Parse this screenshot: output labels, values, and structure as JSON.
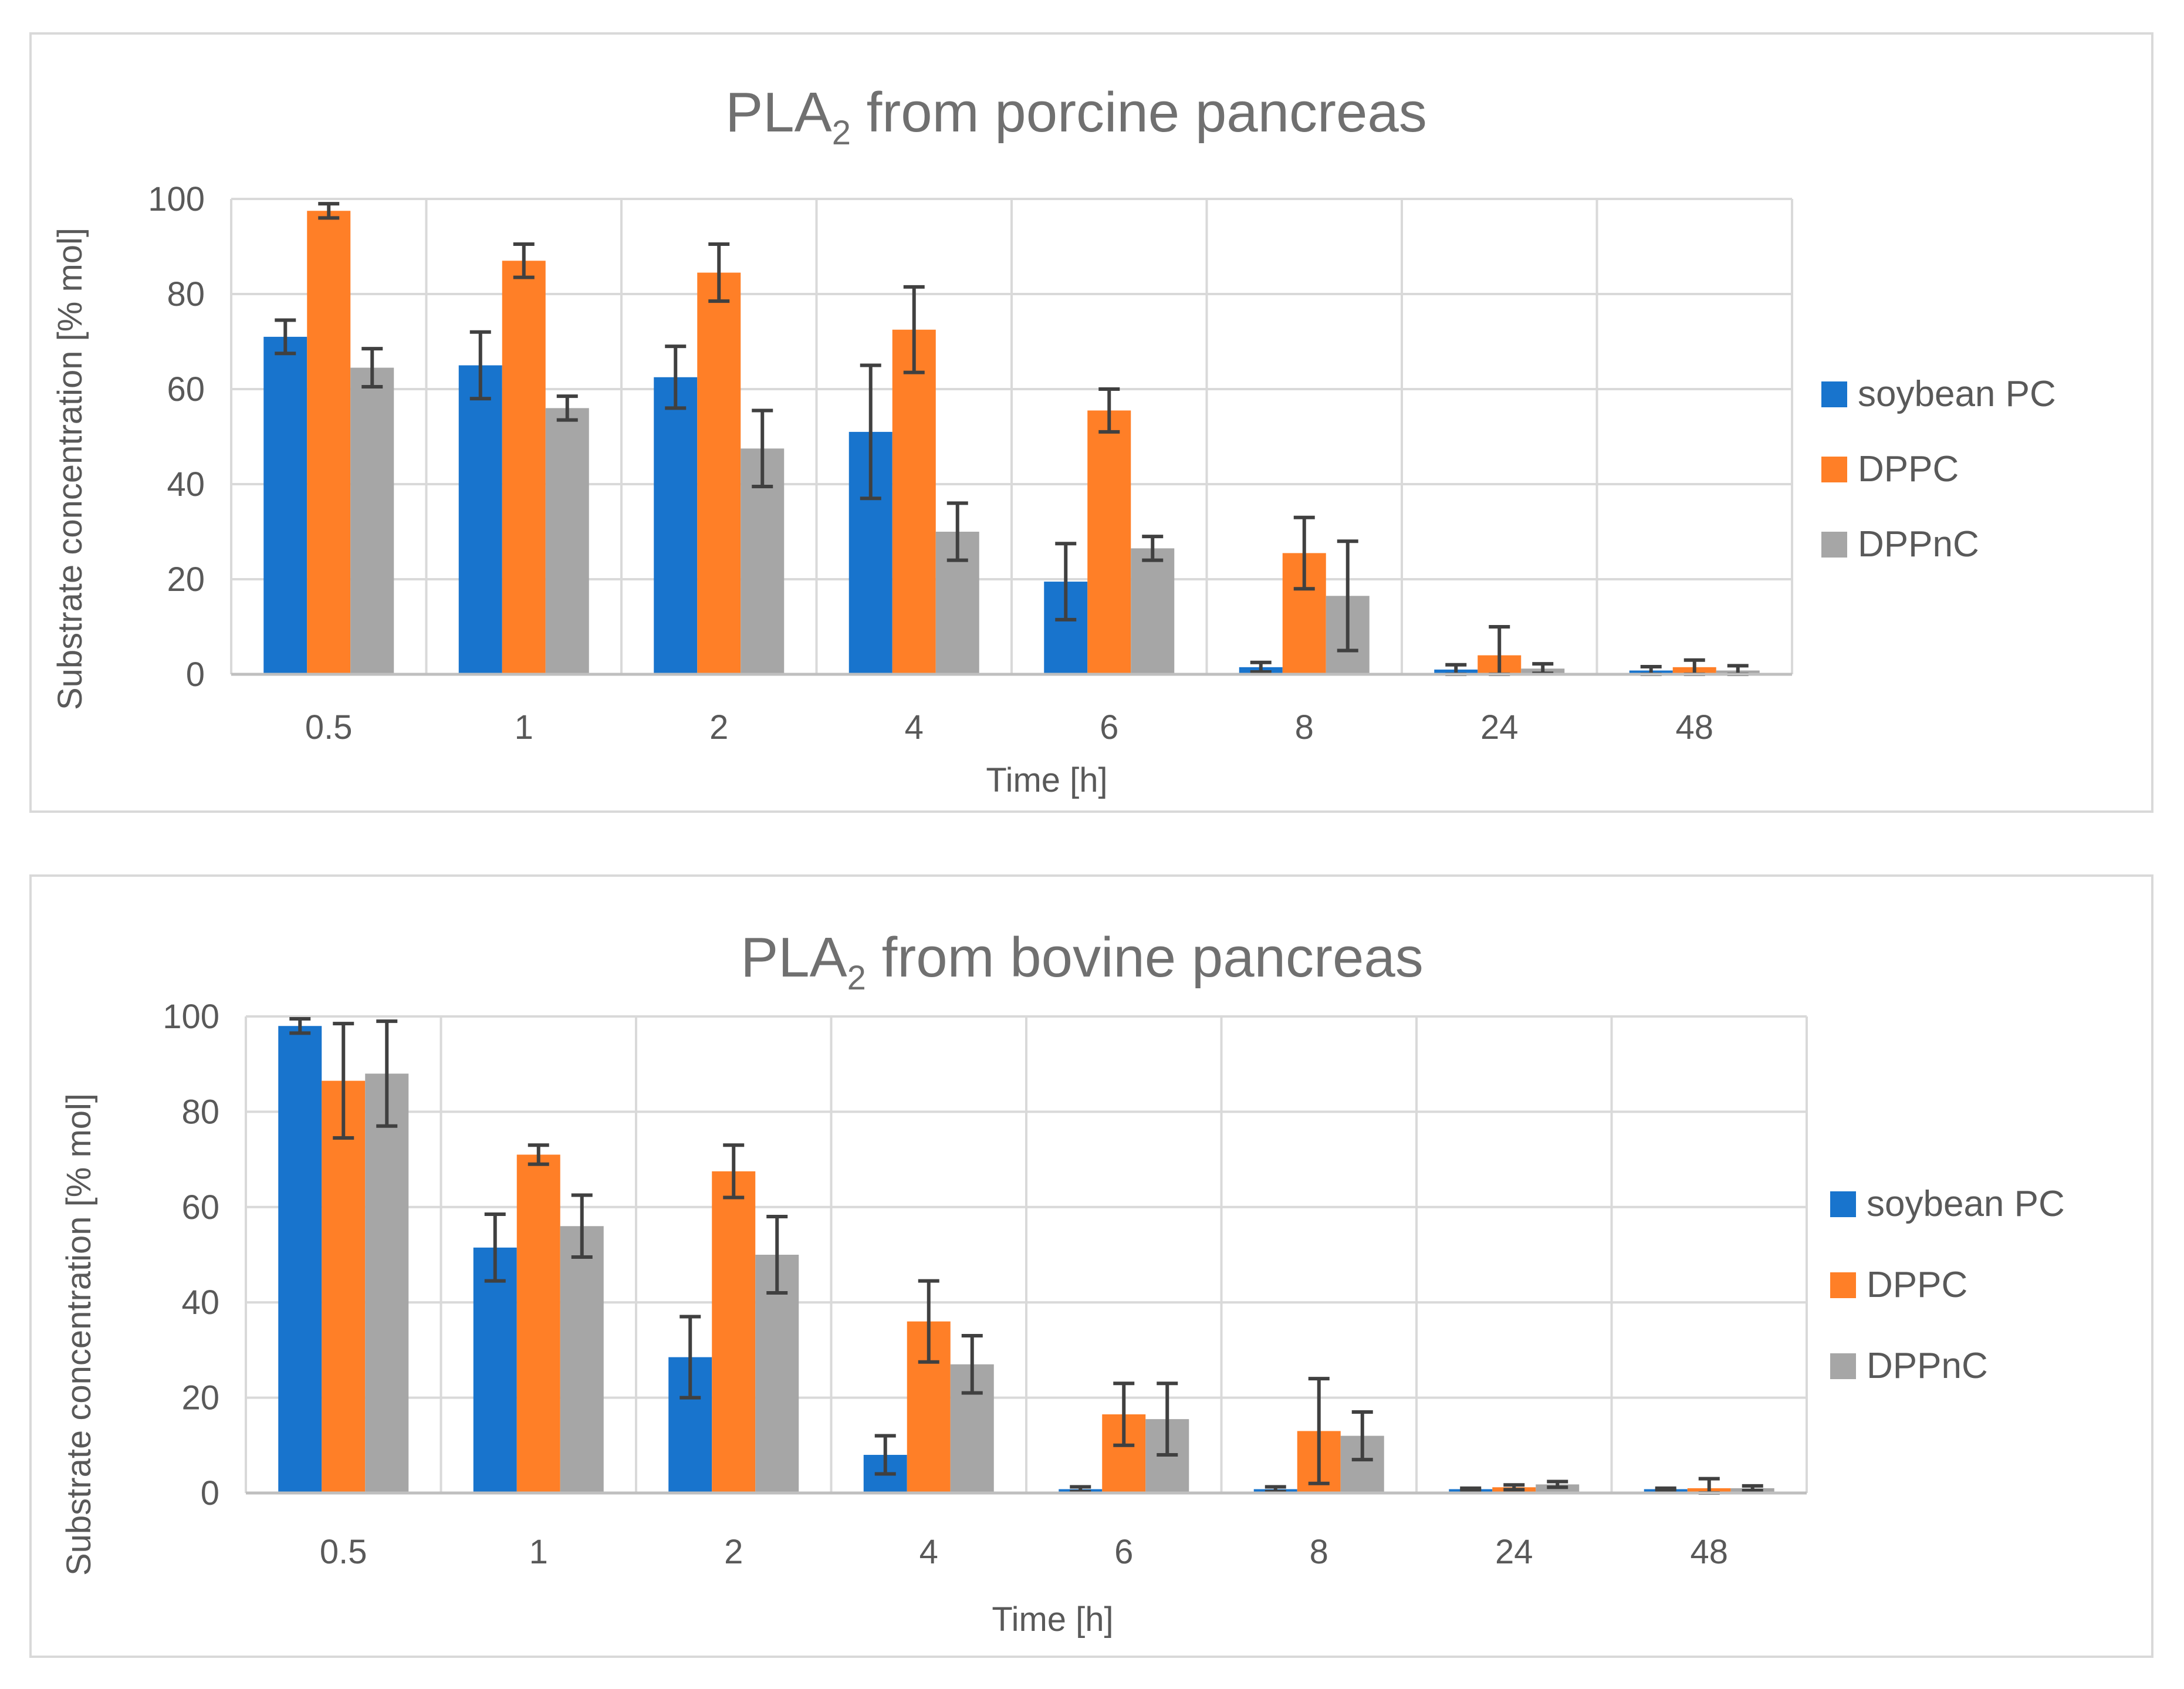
{
  "chart_data": [
    {
      "type": "bar",
      "title": "PLA",
      "title_sub": "2",
      "title_rest": " from porcine pancreas",
      "xlabel": "Time [h]",
      "ylabel": "Substrate concentration [% mol]",
      "ylim": [
        0,
        100
      ],
      "yticks": [
        0,
        20,
        40,
        60,
        80,
        100
      ],
      "grid": true,
      "legend_position": "right",
      "categories": [
        "0.5",
        "1",
        "2",
        "4",
        "6",
        "8",
        "24",
        "48"
      ],
      "series": [
        {
          "name": "soybean PC",
          "color": "#1874CD",
          "values": [
            71,
            65,
            62.5,
            51,
            19.5,
            1.5,
            1,
            0.8
          ],
          "errors": [
            3.5,
            7,
            6.5,
            14,
            8,
            1,
            1,
            0.8
          ]
        },
        {
          "name": "DPPC",
          "color": "#FF7F27",
          "values": [
            97.5,
            87,
            84.5,
            72.5,
            55.5,
            25.5,
            4,
            1.5
          ],
          "errors": [
            1.5,
            3.5,
            6,
            9,
            4.5,
            7.5,
            6,
            1.5
          ]
        },
        {
          "name": "DPPnC",
          "color": "#A6A6A6",
          "values": [
            64.5,
            56,
            47.5,
            30,
            26.5,
            16.5,
            1.2,
            0.8
          ],
          "errors": [
            4,
            2.5,
            8,
            6,
            2.5,
            11.5,
            1,
            1
          ]
        }
      ]
    },
    {
      "type": "bar",
      "title": "PLA",
      "title_sub": "2",
      "title_rest": " from bovine pancreas",
      "xlabel": "Time [h]",
      "ylabel": "Substrate concentration [% mol]",
      "ylim": [
        0,
        100
      ],
      "yticks": [
        0,
        20,
        40,
        60,
        80,
        100
      ],
      "grid": true,
      "legend_position": "right",
      "categories": [
        "0.5",
        "1",
        "2",
        "4",
        "6",
        "8",
        "24",
        "48"
      ],
      "series": [
        {
          "name": "soybean PC",
          "color": "#1874CD",
          "values": [
            98,
            51.5,
            28.5,
            8,
            0.8,
            0.8,
            0.8,
            0.8
          ],
          "errors": [
            1.5,
            7,
            8.5,
            4,
            0.5,
            0.5,
            0.2,
            0.2
          ]
        },
        {
          "name": "DPPC",
          "color": "#FF7F27",
          "values": [
            86.5,
            71,
            67.5,
            36,
            16.5,
            13,
            1.2,
            1
          ],
          "errors": [
            12,
            2,
            5.5,
            8.5,
            6.5,
            11,
            0.5,
            2
          ]
        },
        {
          "name": "DPPnC",
          "color": "#A6A6A6",
          "values": [
            88,
            56,
            50,
            27,
            15.5,
            12,
            1.8,
            1
          ],
          "errors": [
            11,
            6.5,
            8,
            6,
            7.5,
            5,
            0.6,
            0.5
          ]
        }
      ]
    }
  ]
}
